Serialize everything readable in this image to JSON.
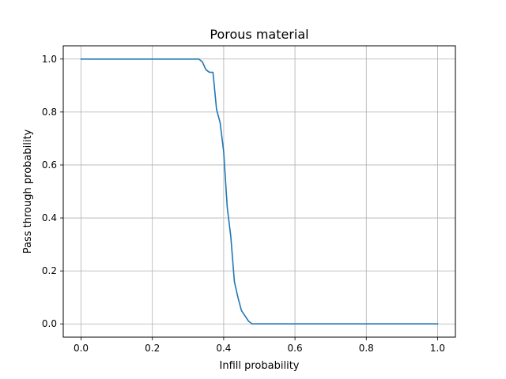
{
  "chart_data": {
    "type": "line",
    "title": "Porous material",
    "xlabel": "Infill probability",
    "ylabel": "Pass through probability",
    "xlim": [
      -0.05,
      1.05
    ],
    "ylim": [
      -0.05,
      1.05
    ],
    "grid": true,
    "xticks": [
      0.0,
      0.2,
      0.4,
      0.6,
      0.8,
      1.0
    ],
    "xtick_labels": [
      "0.0",
      "0.2",
      "0.4",
      "0.6",
      "0.8",
      "1.0"
    ],
    "yticks": [
      0.0,
      0.2,
      0.4,
      0.6,
      0.8,
      1.0
    ],
    "ytick_labels": [
      "0.0",
      "0.2",
      "0.4",
      "0.6",
      "0.8",
      "1.0"
    ],
    "series": [
      {
        "color": "#1f77b4",
        "x": [
          0.0,
          0.05,
          0.1,
          0.15,
          0.2,
          0.25,
          0.3,
          0.33,
          0.34,
          0.35,
          0.36,
          0.37,
          0.38,
          0.39,
          0.4,
          0.41,
          0.42,
          0.43,
          0.44,
          0.45,
          0.46,
          0.47,
          0.48,
          0.49,
          0.5,
          0.6,
          0.7,
          0.8,
          0.9,
          1.0
        ],
        "y": [
          1.0,
          1.0,
          1.0,
          1.0,
          1.0,
          1.0,
          1.0,
          1.0,
          0.99,
          0.96,
          0.95,
          0.95,
          0.81,
          0.76,
          0.65,
          0.44,
          0.33,
          0.16,
          0.1,
          0.05,
          0.03,
          0.01,
          0.0,
          0.0,
          0.0,
          0.0,
          0.0,
          0.0,
          0.0,
          0.0
        ]
      }
    ]
  }
}
